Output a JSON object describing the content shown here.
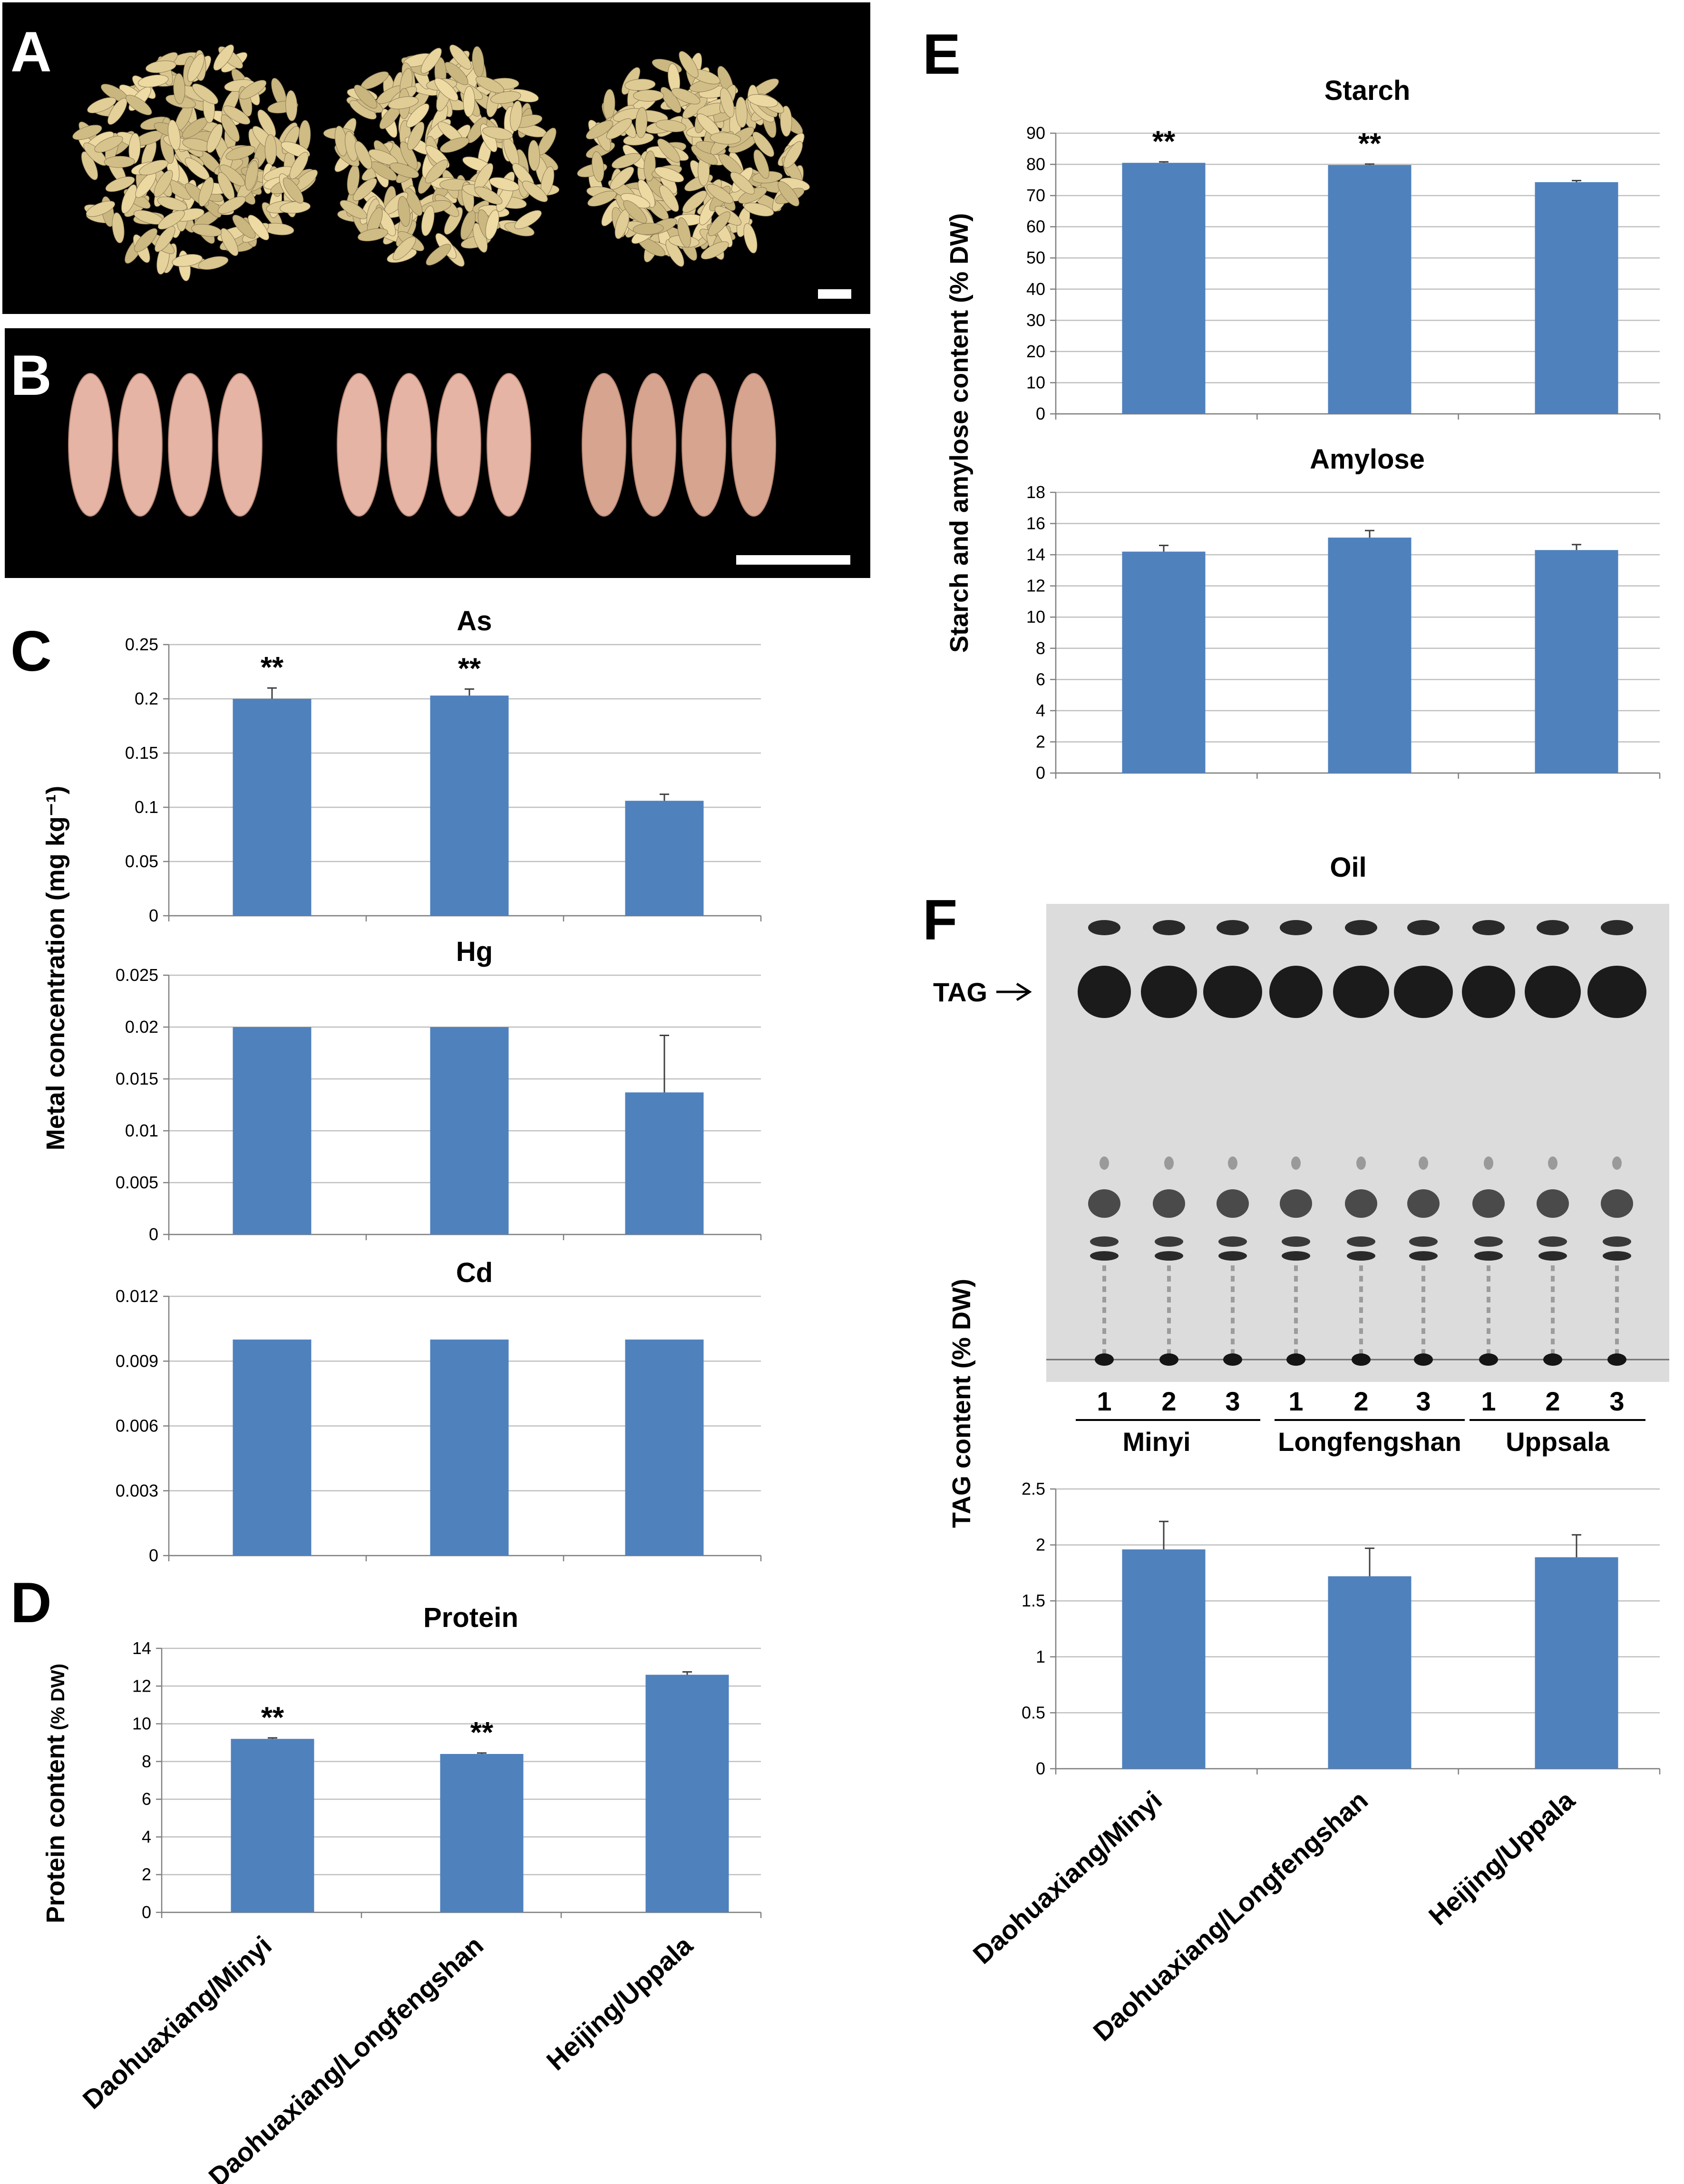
{
  "panels": {
    "a": "A",
    "b": "B",
    "c": "C",
    "d": "D",
    "e": "E",
    "f": "F"
  },
  "colors": {
    "bar": "#4F81BD",
    "grid": "#BFBFBF",
    "photo_bg": "#000000",
    "grain": "#E2CFA0",
    "kernel": "#E6B4A4",
    "tlc_plate": "#DCDCDC",
    "tlc_spot": "#2A2A2A"
  },
  "photos": {
    "a_icon": "brown-rice-grains-photo",
    "b_icon": "rice-kernels-photo"
  },
  "categories": [
    "Daohuaxiang/Minyi",
    "Daohuaxiang/Longfengshan",
    "Heijing/Uppala"
  ],
  "ylabels": {
    "metal": "Metal concentration (mg kg⁻¹)",
    "protein_main": "Protein content",
    "protein_unit": "(% DW)",
    "starch": "Starch and amylose content (% DW)",
    "tag": "TAG content (% DW)"
  },
  "tlc": {
    "title": "Oil",
    "tag_label": "TAG",
    "lane_numbers": [
      "1",
      "2",
      "3",
      "1",
      "2",
      "3",
      "1",
      "2",
      "3"
    ],
    "groups": [
      "Minyi",
      "Longfengshan",
      "Uppsala"
    ]
  },
  "chart_data": [
    {
      "id": "As",
      "type": "bar",
      "title": "As",
      "categories": [
        "Daohuaxiang/Minyi",
        "Daohuaxiang/Longfengshan",
        "Heijing/Uppala"
      ],
      "values": [
        0.2,
        0.203,
        0.106
      ],
      "errors": [
        0.01,
        0.006,
        0.006
      ],
      "significance": [
        "**",
        "**",
        ""
      ],
      "ylim": [
        0,
        0.25
      ],
      "ticks": [
        "0",
        "0.05",
        "0.1",
        "0.15",
        "0.2",
        "0.25"
      ]
    },
    {
      "id": "Hg",
      "type": "bar",
      "title": "Hg",
      "categories": [
        "Daohuaxiang/Minyi",
        "Daohuaxiang/Longfengshan",
        "Heijing/Uppala"
      ],
      "values": [
        0.02,
        0.02,
        0.0137
      ],
      "errors": [
        0,
        0,
        0.0055
      ],
      "significance": [
        "",
        "",
        ""
      ],
      "ylim": [
        0,
        0.025
      ],
      "ticks": [
        "0",
        "0.005",
        "0.01",
        "0.015",
        "0.02",
        "0.025"
      ]
    },
    {
      "id": "Cd",
      "type": "bar",
      "title": "Cd",
      "categories": [
        "Daohuaxiang/Minyi",
        "Daohuaxiang/Longfengshan",
        "Heijing/Uppala"
      ],
      "values": [
        0.01,
        0.01,
        0.01
      ],
      "errors": [
        0,
        0,
        0
      ],
      "significance": [
        "",
        "",
        ""
      ],
      "ylim": [
        0,
        0.012
      ],
      "ticks": [
        "0",
        "0.003",
        "0.006",
        "0.009",
        "0.012"
      ]
    },
    {
      "id": "Protein",
      "type": "bar",
      "title": "Protein",
      "categories": [
        "Daohuaxiang/Minyi",
        "Daohuaxiang/Longfengshan",
        "Heijing/Uppala"
      ],
      "values": [
        9.2,
        8.4,
        12.6
      ],
      "errors": [
        0.05,
        0.05,
        0.15
      ],
      "significance": [
        "**",
        "**",
        ""
      ],
      "ylim": [
        0,
        14
      ],
      "ticks": [
        "0",
        "2",
        "4",
        "6",
        "8",
        "10",
        "12",
        "14"
      ]
    },
    {
      "id": "Starch",
      "type": "bar",
      "title": "Starch",
      "categories": [
        "Daohuaxiang/Minyi",
        "Daohuaxiang/Longfengshan",
        "Heijing/Uppala"
      ],
      "values": [
        80.5,
        79.8,
        74.3
      ],
      "errors": [
        0.3,
        0.3,
        0.5
      ],
      "significance": [
        "**",
        "**",
        ""
      ],
      "ylim": [
        0,
        90
      ],
      "ticks": [
        "0",
        "10",
        "20",
        "30",
        "40",
        "50",
        "60",
        "70",
        "80",
        "90"
      ]
    },
    {
      "id": "Amylose",
      "type": "bar",
      "title": "Amylose",
      "categories": [
        "Daohuaxiang/Minyi",
        "Daohuaxiang/Longfengshan",
        "Heijing/Uppala"
      ],
      "values": [
        14.2,
        15.1,
        14.3
      ],
      "errors": [
        0.4,
        0.45,
        0.35
      ],
      "significance": [
        "",
        "",
        ""
      ],
      "ylim": [
        0,
        18
      ],
      "ticks": [
        "0",
        "2",
        "4",
        "6",
        "8",
        "10",
        "12",
        "14",
        "16",
        "18"
      ]
    },
    {
      "id": "TAG",
      "type": "bar",
      "title": "",
      "categories": [
        "Daohuaxiang/Minyi",
        "Daohuaxiang/Longfengshan",
        "Heijing/Uppala"
      ],
      "values": [
        1.96,
        1.72,
        1.89
      ],
      "errors": [
        0.25,
        0.25,
        0.2
      ],
      "significance": [
        "",
        "",
        ""
      ],
      "ylim": [
        0,
        2.5
      ],
      "ticks": [
        "0",
        "0.5",
        "1",
        "1.5",
        "2",
        "2.5"
      ]
    }
  ]
}
